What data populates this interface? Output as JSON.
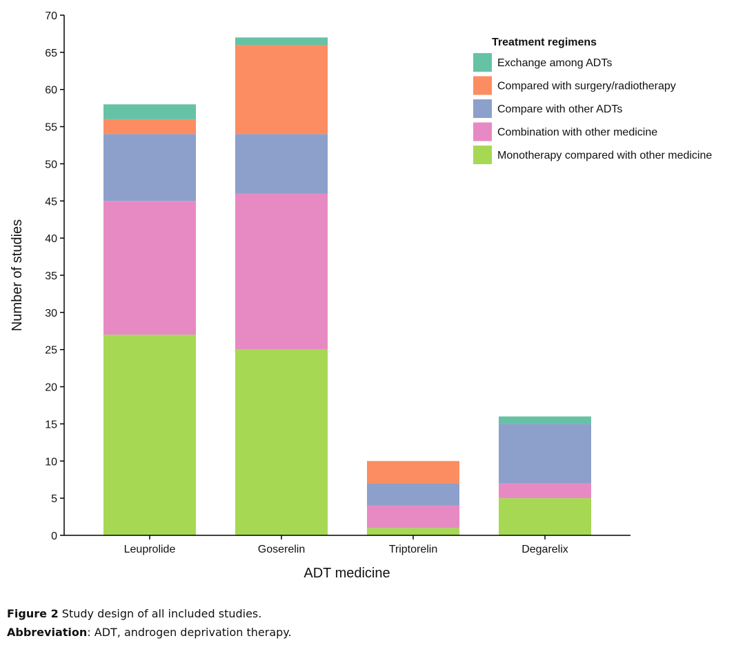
{
  "chart_data": {
    "type": "bar",
    "stacked": true,
    "xlabel": "ADT medicine",
    "ylabel": "Number of studies",
    "ylim": [
      0,
      70
    ],
    "yticks": [
      0,
      5,
      10,
      15,
      20,
      25,
      30,
      35,
      40,
      45,
      50,
      55,
      60,
      65,
      70
    ],
    "categories": [
      "Leuprolide",
      "Goserelin",
      "Triptorelin",
      "Degarelix"
    ],
    "legend_title": "Treatment regimens",
    "legend_position": "top-right",
    "series": [
      {
        "name": "Monotherapy compared with other medicine",
        "color": "#a6d854",
        "values": [
          27,
          25,
          1,
          5
        ]
      },
      {
        "name": "Combination with other medicine",
        "color": "#e78ac3",
        "values": [
          18,
          21,
          3,
          2
        ]
      },
      {
        "name": "Compare with other ADTs",
        "color": "#8da0cb",
        "values": [
          9,
          8,
          3,
          8
        ]
      },
      {
        "name": "Compared with surgery/radiotherapy",
        "color": "#fc8d62",
        "values": [
          2,
          12,
          3,
          0
        ]
      },
      {
        "name": "Exchange among ADTs",
        "color": "#66c2a5",
        "values": [
          2,
          1,
          0,
          1
        ]
      }
    ]
  },
  "caption": {
    "figure_label": "Figure 2",
    "figure_text": " Study design of all included studies.",
    "abbrev_label": "Abbreviation",
    "abbrev_text": ": ADT, androgen deprivation therapy."
  }
}
